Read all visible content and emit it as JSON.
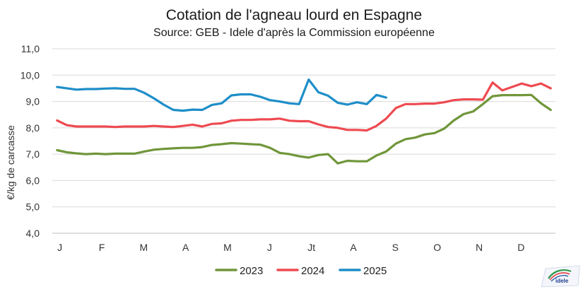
{
  "chart_data": {
    "type": "line",
    "title": "Cotation de l'agneau lourd en Espagne",
    "subtitle": "Source: GEB - Idele d'après la Commission européenne",
    "ylabel": "€/kg de carcasse",
    "xlabel": "",
    "ylim": [
      4.0,
      11.0
    ],
    "yticks": [
      "4,0",
      "5,0",
      "6,0",
      "7,0",
      "8,0",
      "9,0",
      "10,0",
      "11,0"
    ],
    "xtick_labels": [
      "J",
      "F",
      "M",
      "A",
      "M",
      "J",
      "Jt",
      "A",
      "S",
      "O",
      "N",
      "D"
    ],
    "x_unit": "week",
    "grid": "horizontal",
    "legend_position": "bottom",
    "series": [
      {
        "name": "2023",
        "color": "#70963a",
        "x": [
          1,
          2,
          3,
          4,
          5,
          6,
          7,
          8,
          9,
          10,
          11,
          12,
          13,
          14,
          15,
          16,
          17,
          18,
          19,
          20,
          21,
          22,
          23,
          24,
          25,
          26,
          27,
          28,
          29,
          30,
          31,
          32,
          33,
          34,
          35,
          36,
          37,
          38,
          39,
          40,
          41,
          42,
          43,
          44,
          45,
          46,
          47,
          48,
          49,
          50,
          51,
          52
        ],
        "values": [
          7.15,
          7.07,
          7.03,
          7.0,
          7.02,
          7.0,
          7.02,
          7.02,
          7.02,
          7.1,
          7.17,
          7.2,
          7.22,
          7.24,
          7.24,
          7.27,
          7.35,
          7.38,
          7.42,
          7.4,
          7.38,
          7.36,
          7.24,
          7.05,
          7.0,
          6.92,
          6.87,
          6.97,
          7.0,
          6.65,
          6.75,
          6.73,
          6.73,
          6.95,
          7.1,
          7.4,
          7.57,
          7.63,
          7.75,
          7.8,
          7.97,
          8.28,
          8.52,
          8.62,
          8.9,
          9.2,
          9.24,
          9.24,
          9.24,
          9.25,
          8.93,
          8.68
        ]
      },
      {
        "name": "2024",
        "color": "#ee4a50",
        "x": [
          1,
          2,
          3,
          4,
          5,
          6,
          7,
          8,
          9,
          10,
          11,
          12,
          13,
          14,
          15,
          16,
          17,
          18,
          19,
          20,
          21,
          22,
          23,
          24,
          25,
          26,
          27,
          28,
          29,
          30,
          31,
          32,
          33,
          34,
          35,
          36,
          37,
          38,
          39,
          40,
          41,
          42,
          43,
          44,
          45,
          46,
          47,
          48,
          49,
          50,
          51,
          52
        ],
        "values": [
          8.28,
          8.1,
          8.05,
          8.05,
          8.05,
          8.05,
          8.03,
          8.05,
          8.05,
          8.05,
          8.07,
          8.05,
          8.03,
          8.07,
          8.12,
          8.05,
          8.15,
          8.17,
          8.27,
          8.3,
          8.3,
          8.32,
          8.32,
          8.35,
          8.27,
          8.25,
          8.25,
          8.13,
          8.03,
          8.0,
          7.92,
          7.92,
          7.9,
          8.07,
          8.35,
          8.75,
          8.9,
          8.9,
          8.92,
          8.92,
          8.97,
          9.05,
          9.08,
          9.08,
          9.07,
          9.72,
          9.42,
          9.55,
          9.68,
          9.58,
          9.68,
          9.5
        ]
      },
      {
        "name": "2025",
        "color": "#1e8ec8",
        "x": [
          1,
          2,
          3,
          4,
          5,
          6,
          7,
          8,
          9,
          10,
          11,
          12,
          13,
          14,
          15,
          16,
          17,
          18,
          19,
          20,
          21,
          22,
          23,
          24,
          25,
          26,
          27,
          28,
          29,
          30,
          31,
          32,
          33,
          34,
          35
        ],
        "values": [
          9.55,
          9.5,
          9.45,
          9.47,
          9.47,
          9.49,
          9.5,
          9.48,
          9.48,
          9.33,
          9.12,
          8.88,
          8.68,
          8.65,
          8.69,
          8.68,
          8.87,
          8.93,
          9.23,
          9.27,
          9.27,
          9.18,
          9.05,
          9.0,
          8.93,
          8.9,
          9.83,
          9.35,
          9.22,
          8.95,
          8.88,
          8.97,
          8.9,
          9.25,
          9.15
        ]
      }
    ]
  }
}
